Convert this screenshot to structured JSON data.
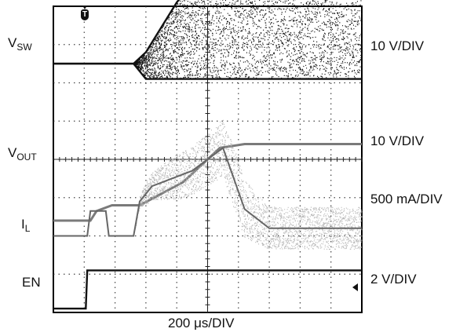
{
  "chart_data": {
    "type": "line",
    "title": "",
    "xlabel": "200 μs/DIV",
    "x_unit": "μs",
    "x_per_div": 200,
    "grid": {
      "divisions_x": 10,
      "divisions_y": 8,
      "on": true
    },
    "trigger_marker": "T",
    "series": [
      {
        "name": "VSW",
        "label_main": "V",
        "label_sub": "SW",
        "scale": "10 V/DIV",
        "scale_v_per_div": 10,
        "baseline_div": 1.5,
        "style": "dense switching band",
        "color": "#111111",
        "points": [
          [
            0,
            0
          ],
          [
            2.6,
            0
          ],
          [
            3,
            0.3
          ],
          [
            4,
            1.6
          ],
          [
            5.5,
            3.1
          ],
          [
            10,
            3.1
          ]
        ],
        "lower_points": [
          [
            0,
            0
          ],
          [
            2.6,
            0
          ],
          [
            3,
            -0.4
          ],
          [
            10,
            -0.4
          ]
        ]
      },
      {
        "name": "VOUT",
        "label_main": "V",
        "label_sub": "OUT",
        "scale": "10 V/DIV",
        "scale_v_per_div": 10,
        "baseline_div": 5.6,
        "style": "line",
        "color": "#7a7a7a",
        "points": [
          [
            0,
            0
          ],
          [
            1.2,
            0
          ],
          [
            1.4,
            0.25
          ],
          [
            1.9,
            0.4
          ],
          [
            2.8,
            0.4
          ],
          [
            4.2,
            1.0
          ],
          [
            5.4,
            1.9
          ],
          [
            6.2,
            2.0
          ],
          [
            10,
            2.0
          ]
        ]
      },
      {
        "name": "IL",
        "label_main": "I",
        "label_sub": "L",
        "scale": "500 mA/DIV",
        "scale_a_per_div": 0.5,
        "baseline_div": 6.0,
        "style": "ripple band",
        "color": "#b0b0b0",
        "points": [
          [
            0,
            0
          ],
          [
            1.1,
            0
          ],
          [
            1.2,
            0.65
          ],
          [
            1.7,
            0.65
          ],
          [
            1.8,
            0
          ],
          [
            2.6,
            0
          ],
          [
            2.8,
            0.9
          ],
          [
            3.2,
            1.3
          ],
          [
            4.5,
            1.7
          ],
          [
            5.5,
            2.3
          ],
          [
            6.2,
            0.7
          ],
          [
            7,
            0.2
          ],
          [
            10,
            0.2
          ]
        ],
        "ripple_div": [
          [
            0,
            0
          ],
          [
            2.6,
            0
          ],
          [
            3,
            0.6
          ],
          [
            4,
            1.2
          ],
          [
            5,
            1.4
          ],
          [
            6,
            1.6
          ],
          [
            7,
            1.1
          ],
          [
            10,
            1.1
          ]
        ]
      },
      {
        "name": "EN",
        "label_main": "EN",
        "label_sub": "",
        "scale": "2 V/DIV",
        "scale_v_per_div": 2,
        "baseline_div": 7.9,
        "style": "line",
        "color": "#111111",
        "points": [
          [
            0,
            0
          ],
          [
            1.05,
            0
          ],
          [
            1.1,
            1.0
          ],
          [
            10,
            1.0
          ]
        ]
      }
    ]
  }
}
